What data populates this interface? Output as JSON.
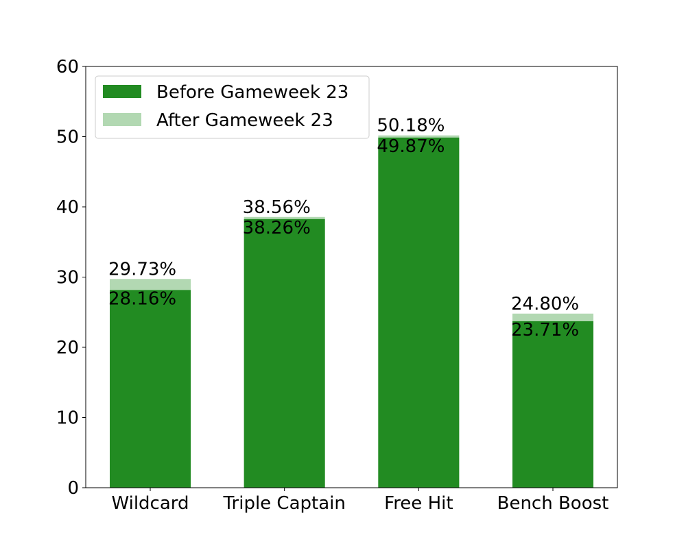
{
  "chart_data": {
    "type": "bar",
    "categories": [
      "Wildcard",
      "Triple Captain",
      "Free Hit",
      "Bench Boost"
    ],
    "series": [
      {
        "name": "Before Gameweek 23",
        "values": [
          28.16,
          38.26,
          49.87,
          23.71
        ],
        "labels": [
          "28.16%",
          "38.26%",
          "49.87%",
          "23.71%"
        ]
      },
      {
        "name": "After Gameweek 23",
        "values": [
          29.73,
          38.56,
          50.18,
          24.8
        ],
        "labels": [
          "29.73%",
          "38.56%",
          "50.18%",
          "24.80%"
        ]
      }
    ],
    "ylim": [
      0,
      60
    ],
    "yticks": [
      0,
      10,
      20,
      30,
      40,
      50,
      60
    ],
    "ytick_labels": [
      "0",
      "10",
      "20",
      "30",
      "40",
      "50",
      "60"
    ],
    "legend_position": "top-left",
    "grid": false,
    "colors": {
      "before": "#228b22",
      "after": "#b2d8b2"
    }
  }
}
